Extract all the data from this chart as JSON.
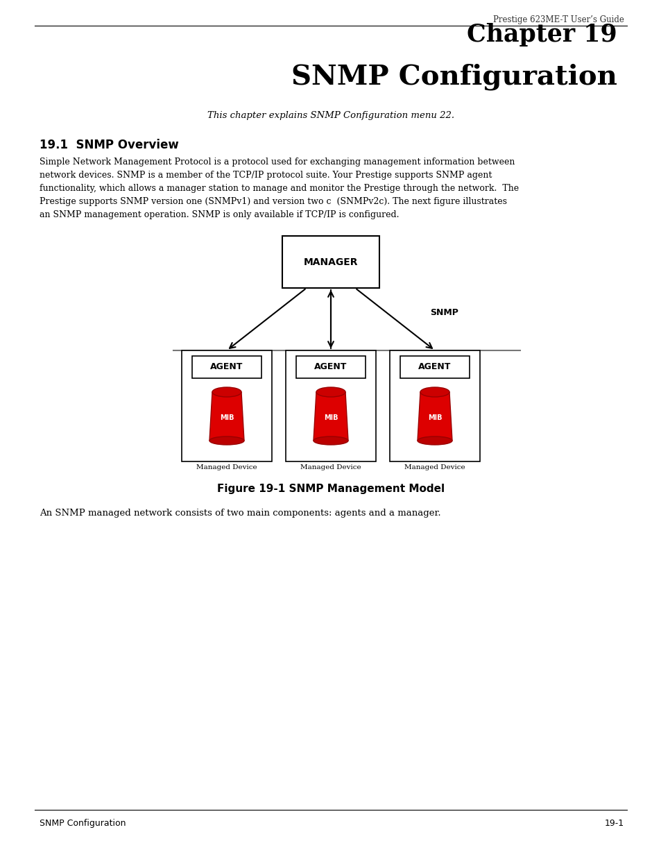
{
  "header_text": "Prestige 623ME-T User’s Guide",
  "chapter_title_line1": "Chapter 19",
  "chapter_title_line2": "SNMP Configuration",
  "subtitle": "This chapter explains SNMP Configuration menu 22.",
  "section_title": "19.1  SNMP Overview",
  "body_text": "Simple Network Management Protocol is a protocol used for exchanging management information between\nnetwork devices. SNMP is a member of the TCP/IP protocol suite. Your Prestige supports SNMP agent\nfunctionality, which allows a manager station to manage and monitor the Prestige through the network.  The\nPrestige supports SNMP version one (SNMPv1) and version two c  (SNMPv2c). The next figure illustrates\nan SNMP management operation. SNMP is only available if TCP/IP is configured.",
  "figure_caption": "Figure 19-1 SNMP Management Model",
  "post_figure_text": "An SNMP managed network consists of two main components: agents and a manager.",
  "footer_left": "SNMP Configuration",
  "footer_right": "19-1",
  "manager_label": "MANAGER",
  "agent_label": "AGENT",
  "mib_label": "MIB",
  "snmp_label": "SNMP",
  "managed_device_label": "Managed Device",
  "bg_color": "#ffffff",
  "text_color": "#000000"
}
